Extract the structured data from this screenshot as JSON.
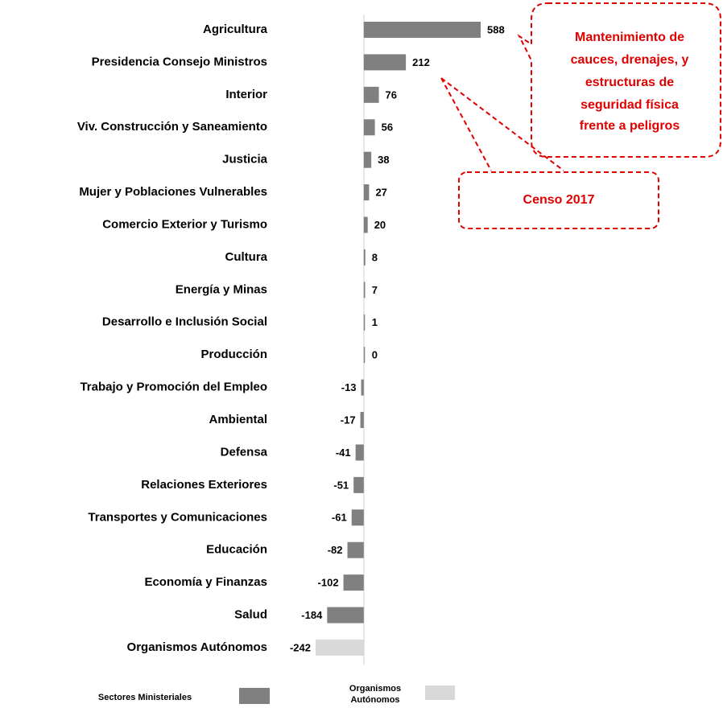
{
  "chart_data": {
    "type": "hbar",
    "categories": [
      "Agricultura",
      "Presidencia Consejo Ministros",
      "Interior",
      "Viv. Construcción y Saneamiento",
      "Justicia",
      "Mujer y Poblaciones Vulnerables",
      "Comercio Exterior y Turismo",
      "Cultura",
      "Energía y Minas",
      "Desarrollo e Inclusión Social",
      "Producción",
      "Trabajo y Promoción del Empleo",
      "Ambiental",
      "Defensa",
      "Relaciones Exteriores",
      "Transportes y Comunicaciones",
      "Educación",
      "Economía y Finanzas",
      "Salud",
      "Organismos Autónomos"
    ],
    "series": [
      {
        "name": "Sectores Ministeriales",
        "color": "#808080",
        "values": [
          588,
          212,
          76,
          56,
          38,
          27,
          20,
          8,
          7,
          1,
          0,
          -13,
          -17,
          -41,
          -51,
          -61,
          -82,
          -102,
          -184,
          null
        ]
      },
      {
        "name": "Organismos Autónomos",
        "color": "#d9d9d9",
        "values": [
          null,
          null,
          null,
          null,
          null,
          null,
          null,
          null,
          null,
          null,
          null,
          null,
          null,
          null,
          null,
          null,
          null,
          null,
          null,
          -242
        ]
      }
    ],
    "annotations": [
      {
        "lines": [
          "Mantenimiento de",
          "cauces, drenajes, y",
          "estructuras de",
          "seguridad física",
          "frente a peligros"
        ]
      },
      {
        "lines": [
          "Censo 2017"
        ]
      }
    ]
  }
}
